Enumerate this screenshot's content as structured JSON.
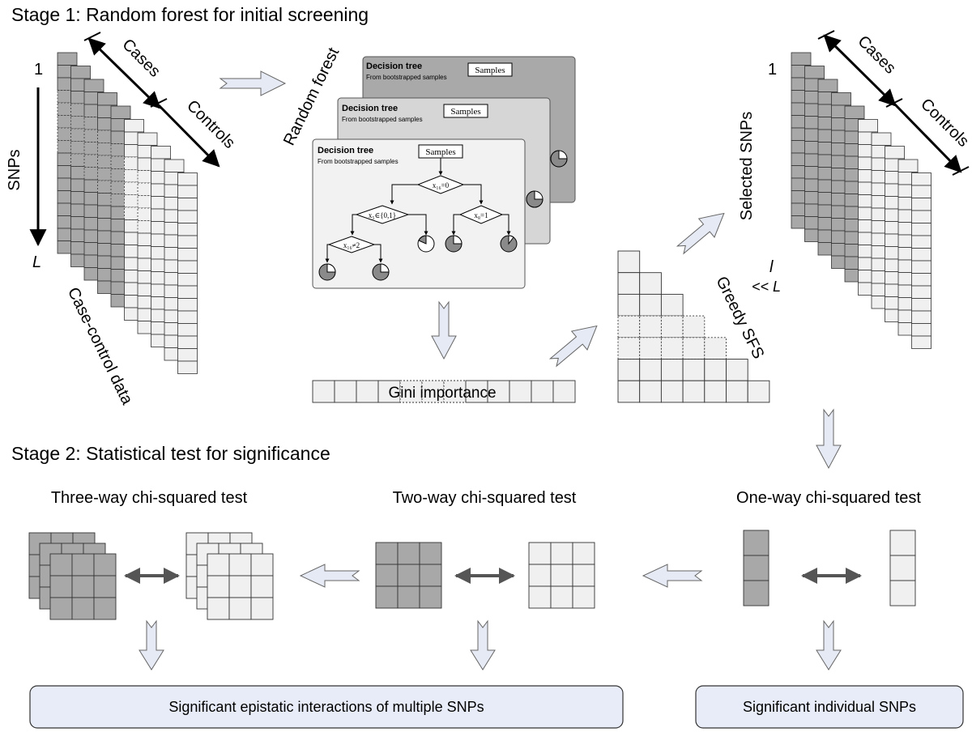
{
  "stage1": {
    "title": "Stage 1: Random forest for initial screening"
  },
  "stage2": {
    "title": "Stage 2: Statistical test for significance"
  },
  "input_data": {
    "snp_start": "1",
    "snp_axis_label": "SNPs",
    "snp_end": "L",
    "cases_label": "Cases",
    "controls_label": "Controls",
    "caption": "Case-control data"
  },
  "random_forest": {
    "label": "Random forest",
    "trees": [
      {
        "title": "Decision tree",
        "subtitle": "From bootstrapped samples",
        "samples_label": "Samples"
      },
      {
        "title": "Decision tree",
        "subtitle": "From bootstrapped samples",
        "samples_label": "Samples"
      },
      {
        "title": "Decision tree",
        "subtitle": "From bootstrapped samples",
        "samples_label": "Samples"
      }
    ],
    "split_labels": [
      "x₁₆=0",
      "x₅∈{0,1}",
      "x₈=1",
      "x₁₆≠2"
    ]
  },
  "gini": {
    "label": "Gini importance"
  },
  "greedy": {
    "label": "Greedy SFS"
  },
  "selected": {
    "start": "1",
    "axis_label": "Selected SNPs",
    "end_line1": "l",
    "end_line2": "<< L",
    "cases_label": "Cases",
    "controls_label": "Controls"
  },
  "tests": {
    "one_way": "One-way chi-squared test",
    "two_way": "Two-way chi-squared test",
    "three_way": "Three-way chi-squared test"
  },
  "results": {
    "multiple": "Significant epistatic interactions of multiple SNPs",
    "individual": "Significant individual SNPs"
  },
  "colors": {
    "case_fill": "#a8a8a8",
    "control_fill": "#f0f0f0",
    "result_box": "#e8ecf8",
    "hollow_arrow_fill": "#e6eaf4"
  }
}
